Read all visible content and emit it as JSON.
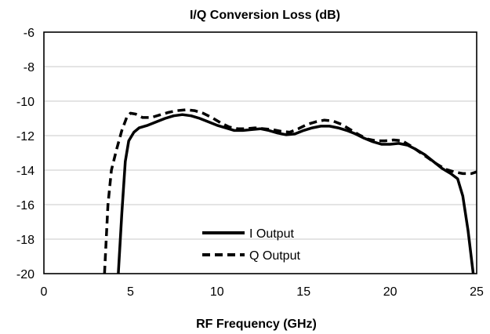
{
  "chart_data": {
    "type": "line",
    "title": "I/Q Conversion Loss (dB)",
    "xlabel": "RF Frequency (GHz)",
    "ylabel": "",
    "xlim": [
      0,
      25
    ],
    "ylim": [
      -20,
      -6
    ],
    "x_ticks": [
      0,
      5,
      10,
      15,
      20,
      25
    ],
    "y_ticks": [
      -6,
      -8,
      -10,
      -12,
      -14,
      -16,
      -18,
      -20
    ],
    "x_tick_labels": [
      "0",
      "5",
      "10",
      "15",
      "20",
      "25"
    ],
    "y_tick_labels": [
      "-6",
      "-8",
      "-10",
      "-12",
      "-14",
      "-16",
      "-18",
      "-20"
    ],
    "grid": "horizontal",
    "legend_position": "bottom-center",
    "series": [
      {
        "name": "I Output",
        "style": "solid",
        "color": "#000000",
        "points": [
          [
            4.3,
            -20
          ],
          [
            4.5,
            -16.5
          ],
          [
            4.7,
            -13.5
          ],
          [
            4.9,
            -12.3
          ],
          [
            5.2,
            -11.8
          ],
          [
            5.5,
            -11.55
          ],
          [
            6.0,
            -11.4
          ],
          [
            6.5,
            -11.2
          ],
          [
            7.0,
            -11.0
          ],
          [
            7.5,
            -10.85
          ],
          [
            8.0,
            -10.78
          ],
          [
            8.5,
            -10.85
          ],
          [
            9.0,
            -11.0
          ],
          [
            9.5,
            -11.2
          ],
          [
            10.0,
            -11.4
          ],
          [
            10.5,
            -11.55
          ],
          [
            11.0,
            -11.7
          ],
          [
            11.5,
            -11.7
          ],
          [
            12.0,
            -11.65
          ],
          [
            12.5,
            -11.6
          ],
          [
            13.0,
            -11.7
          ],
          [
            13.5,
            -11.85
          ],
          [
            14.0,
            -11.95
          ],
          [
            14.5,
            -11.9
          ],
          [
            15.0,
            -11.7
          ],
          [
            15.5,
            -11.55
          ],
          [
            16.0,
            -11.45
          ],
          [
            16.5,
            -11.45
          ],
          [
            17.0,
            -11.55
          ],
          [
            17.5,
            -11.7
          ],
          [
            18.0,
            -11.9
          ],
          [
            18.5,
            -12.15
          ],
          [
            19.0,
            -12.35
          ],
          [
            19.5,
            -12.5
          ],
          [
            20.0,
            -12.5
          ],
          [
            20.5,
            -12.45
          ],
          [
            21.0,
            -12.55
          ],
          [
            21.5,
            -12.8
          ],
          [
            22.0,
            -13.1
          ],
          [
            22.5,
            -13.5
          ],
          [
            23.0,
            -13.9
          ],
          [
            23.5,
            -14.2
          ],
          [
            23.9,
            -14.5
          ],
          [
            24.2,
            -15.5
          ],
          [
            24.5,
            -17.5
          ],
          [
            24.8,
            -20
          ]
        ]
      },
      {
        "name": "Q Output",
        "style": "dashed",
        "color": "#000000",
        "points": [
          [
            3.5,
            -20
          ],
          [
            3.7,
            -16
          ],
          [
            3.9,
            -14
          ],
          [
            4.2,
            -12.8
          ],
          [
            4.5,
            -11.7
          ],
          [
            4.8,
            -10.9
          ],
          [
            5.0,
            -10.7
          ],
          [
            5.3,
            -10.75
          ],
          [
            5.7,
            -10.95
          ],
          [
            6.2,
            -10.95
          ],
          [
            6.7,
            -10.8
          ],
          [
            7.2,
            -10.65
          ],
          [
            7.7,
            -10.55
          ],
          [
            8.2,
            -10.5
          ],
          [
            8.7,
            -10.55
          ],
          [
            9.2,
            -10.7
          ],
          [
            9.7,
            -10.95
          ],
          [
            10.2,
            -11.25
          ],
          [
            10.7,
            -11.5
          ],
          [
            11.2,
            -11.6
          ],
          [
            11.7,
            -11.6
          ],
          [
            12.2,
            -11.55
          ],
          [
            12.7,
            -11.6
          ],
          [
            13.2,
            -11.65
          ],
          [
            13.7,
            -11.75
          ],
          [
            14.2,
            -11.8
          ],
          [
            14.7,
            -11.6
          ],
          [
            15.2,
            -11.35
          ],
          [
            15.7,
            -11.2
          ],
          [
            16.2,
            -11.1
          ],
          [
            16.7,
            -11.15
          ],
          [
            17.2,
            -11.35
          ],
          [
            17.7,
            -11.65
          ],
          [
            18.2,
            -11.95
          ],
          [
            18.7,
            -12.2
          ],
          [
            19.2,
            -12.3
          ],
          [
            19.7,
            -12.3
          ],
          [
            20.2,
            -12.25
          ],
          [
            20.7,
            -12.3
          ],
          [
            21.2,
            -12.6
          ],
          [
            21.7,
            -12.95
          ],
          [
            22.2,
            -13.3
          ],
          [
            22.7,
            -13.65
          ],
          [
            23.2,
            -13.95
          ],
          [
            23.7,
            -14.1
          ],
          [
            24.2,
            -14.2
          ],
          [
            24.7,
            -14.2
          ],
          [
            25.0,
            -14.1
          ]
        ]
      }
    ]
  }
}
